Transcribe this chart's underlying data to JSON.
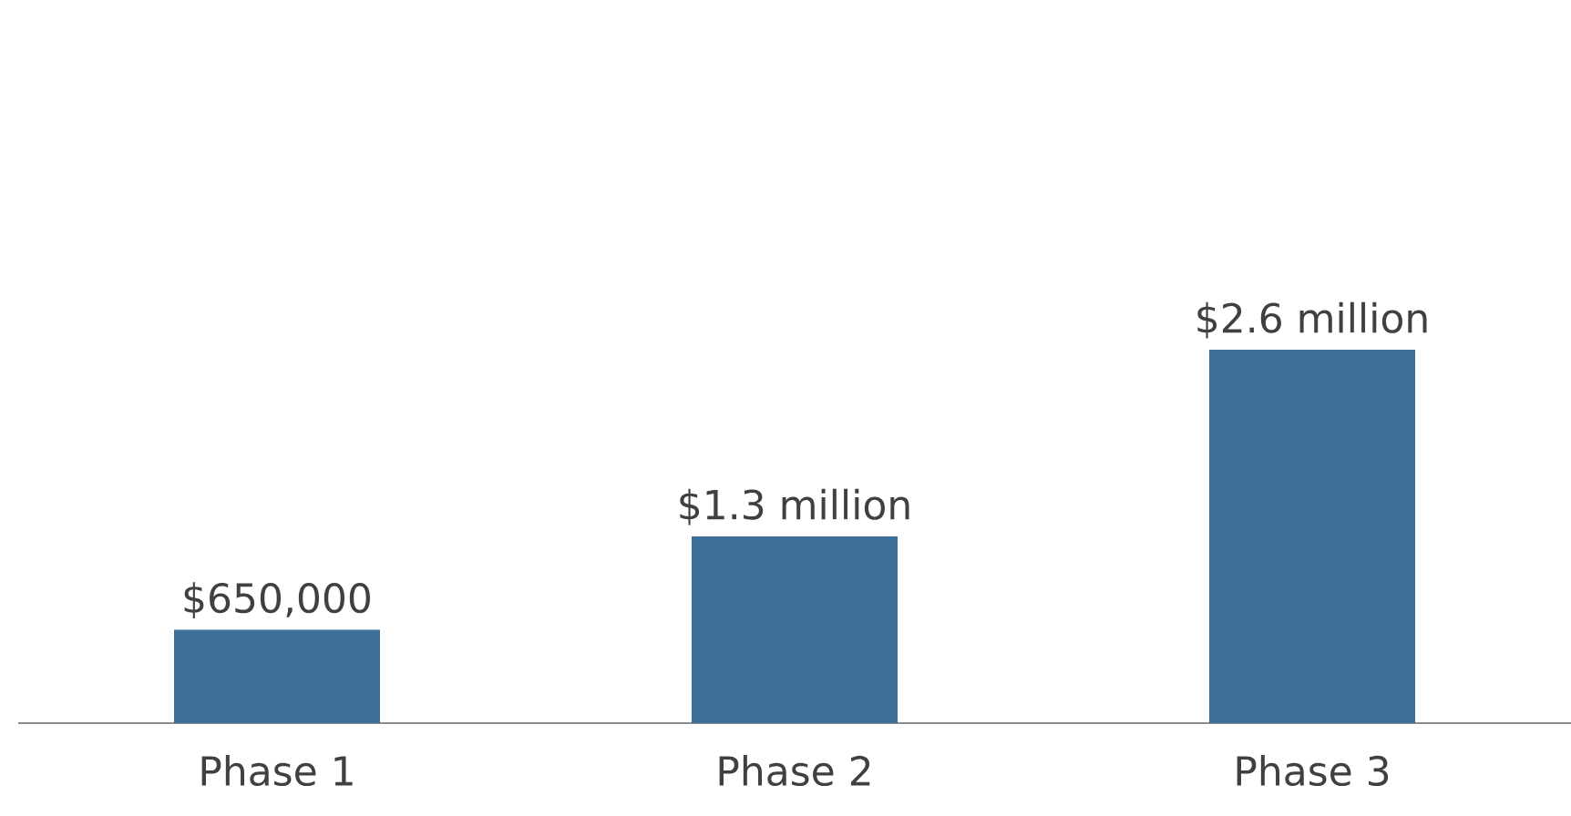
{
  "chart_data": {
    "type": "bar",
    "categories": [
      "Phase 1",
      "Phase 2",
      "Phase 3"
    ],
    "values": [
      650000,
      1300000,
      2600000
    ],
    "value_labels": [
      "$650,000",
      "$1.3 million",
      "$2.6 million"
    ],
    "color": "#3d6f99"
  }
}
